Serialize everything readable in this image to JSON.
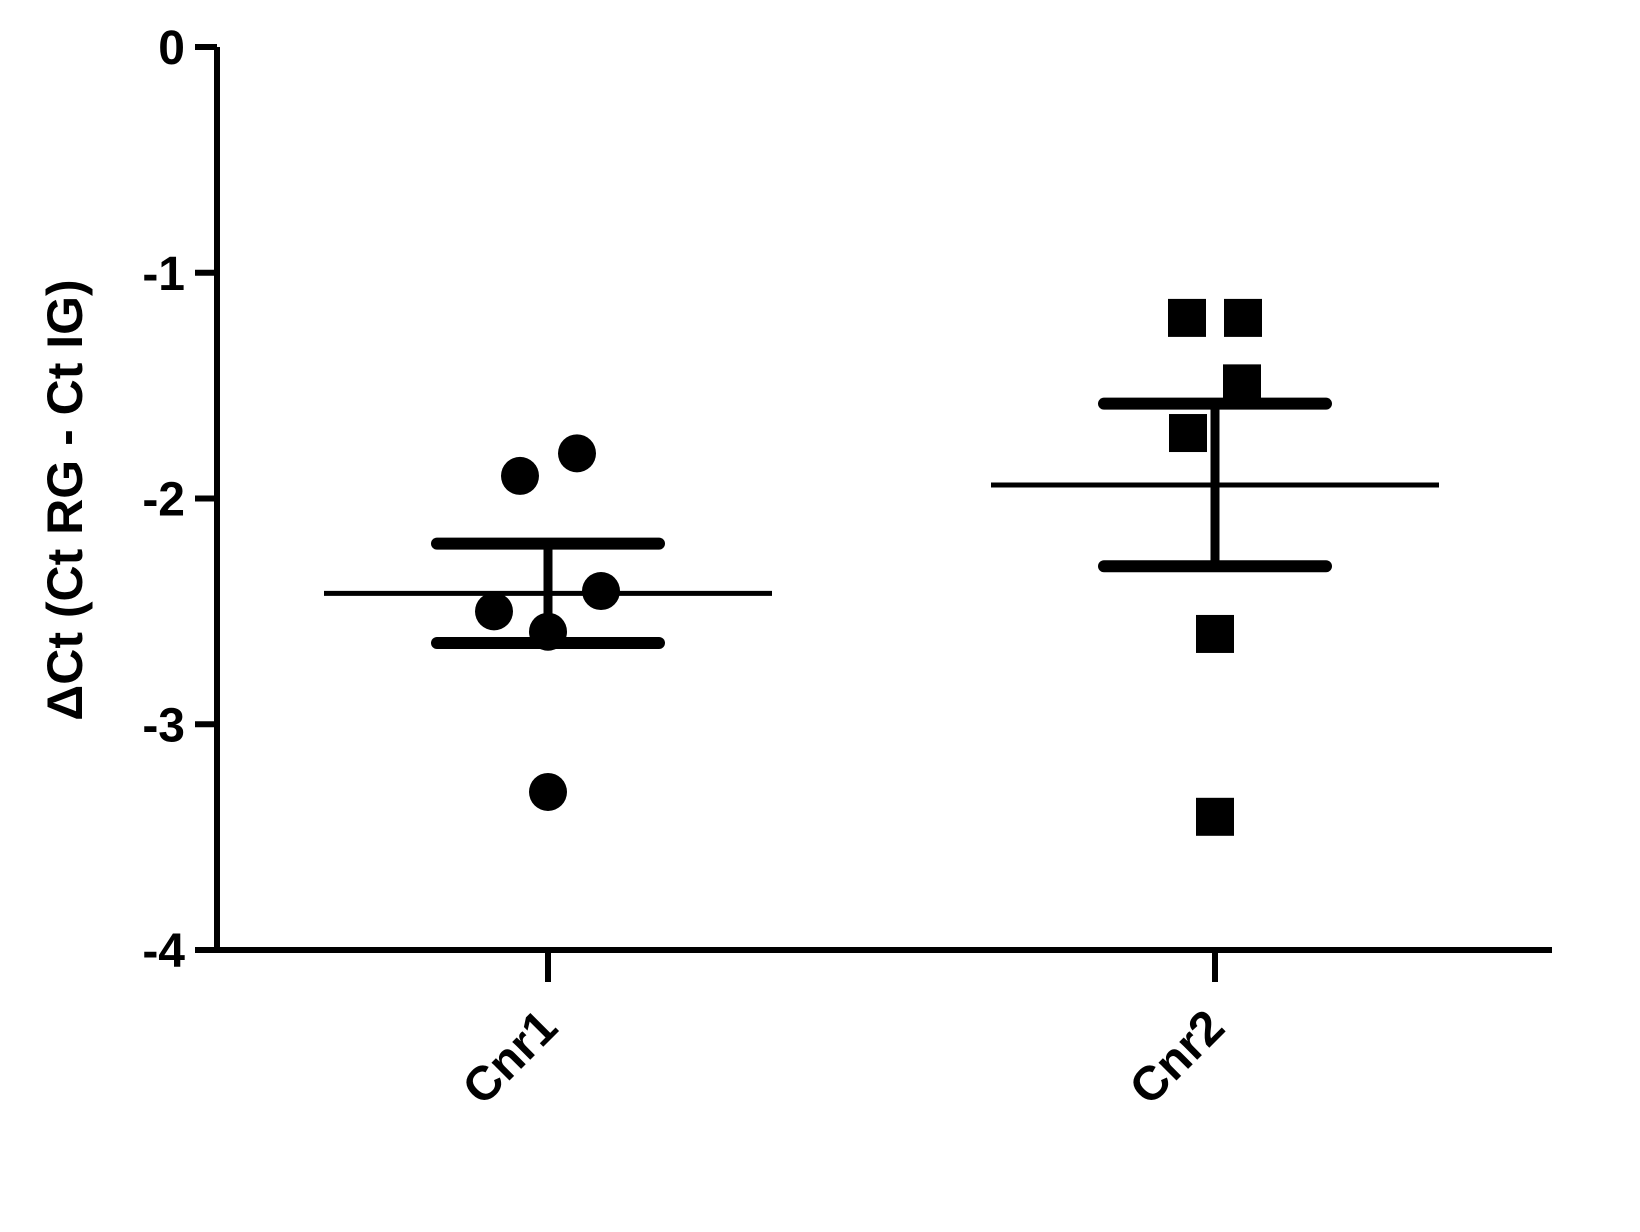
{
  "chart_data": {
    "type": "dot",
    "y_label": "ΔCt (Ct RG - Ct IG)",
    "ylim": [
      -4,
      0
    ],
    "yticks": [
      0,
      -1,
      -2,
      -3,
      -4
    ],
    "color": "#000000",
    "groups": [
      {
        "name": "Cnr1",
        "marker": "circle",
        "values": [
          -1.8,
          -1.9,
          -2.41,
          -2.5,
          -2.59,
          -3.3
        ],
        "mean": -2.42,
        "sem": 0.22
      },
      {
        "name": "Cnr2",
        "marker": "square",
        "values": [
          -1.2,
          -1.2,
          -1.49,
          -1.71,
          -2.6,
          -3.41
        ],
        "mean": -1.94,
        "sem": 0.36
      }
    ]
  }
}
